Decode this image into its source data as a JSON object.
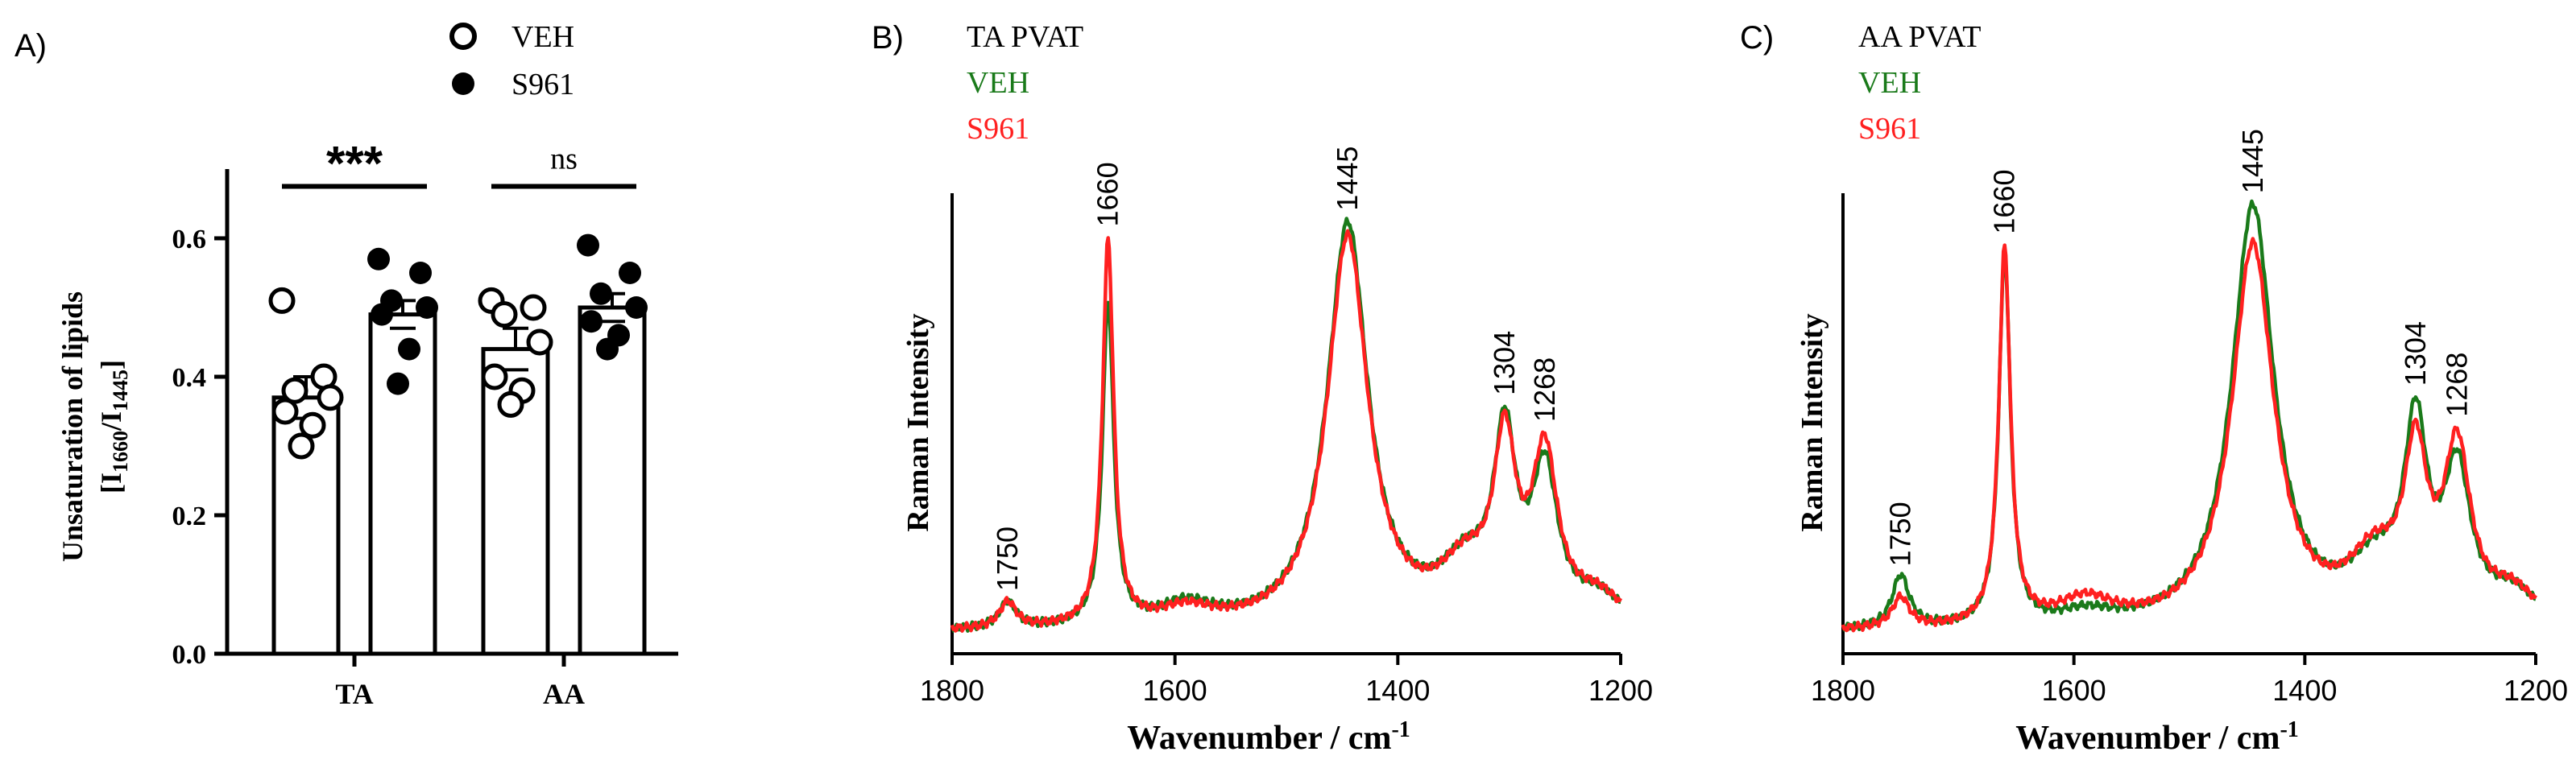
{
  "panels": {
    "a": {
      "label": "A)",
      "legend": [
        {
          "name": "VEH",
          "marker": "open-circle"
        },
        {
          "name": "S961",
          "marker": "filled-circle"
        }
      ],
      "ylabel": "Unsaturation of lipids",
      "ylabel2_prefix": "[I",
      "ylabel2_sub1": "1660",
      "ylabel2_mid": "/I",
      "ylabel2_sub2": "1445",
      "ylabel2_suffix": "]",
      "significance": [
        {
          "group": "TA",
          "text": "***"
        },
        {
          "group": "AA",
          "text": "ns"
        }
      ]
    },
    "b": {
      "label": "B)",
      "title": "TA PVAT",
      "legend": [
        {
          "name": "VEH",
          "color": "#1a7a1a"
        },
        {
          "name": "S961",
          "color": "#ff2020"
        }
      ]
    },
    "c": {
      "label": "C)",
      "title": "AA PVAT",
      "legend": [
        {
          "name": "VEH",
          "color": "#1a7a1a"
        },
        {
          "name": "S961",
          "color": "#ff2020"
        }
      ]
    }
  },
  "chart_data": [
    {
      "id": "a",
      "type": "bar",
      "title": "",
      "xlabel": "",
      "ylabel": "Unsaturation of lipids [I1660/I1445]",
      "categories": [
        "TA",
        "AA"
      ],
      "ylim": [
        0.0,
        0.7
      ],
      "yticks": [
        0.0,
        0.2,
        0.4,
        0.6
      ],
      "ytick_labels": [
        "0.0",
        "0.2",
        "0.4",
        "0.6"
      ],
      "series": [
        {
          "name": "VEH",
          "means": [
            0.37,
            0.44
          ],
          "sem": [
            0.03,
            0.03
          ],
          "points": [
            [
              0.51,
              0.4,
              0.38,
              0.37,
              0.35,
              0.33,
              0.3
            ],
            [
              0.51,
              0.5,
              0.49,
              0.45,
              0.4,
              0.38,
              0.36
            ]
          ]
        },
        {
          "name": "S961",
          "means": [
            0.49,
            0.5
          ],
          "sem": [
            0.02,
            0.02
          ],
          "points": [
            [
              0.57,
              0.55,
              0.51,
              0.5,
              0.49,
              0.44,
              0.39
            ],
            [
              0.59,
              0.55,
              0.52,
              0.5,
              0.48,
              0.46,
              0.44
            ]
          ]
        }
      ]
    },
    {
      "id": "b",
      "type": "line",
      "title": "TA PVAT",
      "xlabel": "Wavenumber / cm-1",
      "ylabel": "Raman Intensity",
      "xlim": [
        1800,
        1200
      ],
      "ylim": [
        0,
        1.05
      ],
      "xticks": [
        1800,
        1600,
        1400,
        1200
      ],
      "baseline": 0.05,
      "peak_labels": [
        "1750",
        "1660",
        "1445",
        "1304",
        "1268"
      ],
      "peaks": [
        {
          "center": 1750,
          "width": 9,
          "veh": 0.06,
          "s961": 0.06
        },
        {
          "center": 1660,
          "width": 6,
          "veh": 0.74,
          "s961": 0.88
        },
        {
          "center": 1590,
          "width": 30,
          "veh": 0.05,
          "s961": 0.04
        },
        {
          "center": 1445,
          "width": 22,
          "veh": 0.92,
          "s961": 0.89
        },
        {
          "center": 1304,
          "width": 12,
          "veh": 0.4,
          "s961": 0.38
        },
        {
          "center": 1268,
          "width": 14,
          "veh": 0.33,
          "s961": 0.37
        },
        {
          "center": 1340,
          "width": 28,
          "veh": 0.12,
          "s961": 0.12
        },
        {
          "center": 1220,
          "width": 25,
          "veh": 0.06,
          "s961": 0.06
        }
      ],
      "series": [
        {
          "name": "VEH",
          "color": "#1a7a1a"
        },
        {
          "name": "S961",
          "color": "#ff2020"
        }
      ]
    },
    {
      "id": "c",
      "type": "line",
      "title": "AA PVAT",
      "xlabel": "Wavenumber / cm-1",
      "ylabel": "Raman Intensity",
      "xlim": [
        1800,
        1200
      ],
      "ylim": [
        0,
        1.05
      ],
      "xticks": [
        1800,
        1600,
        1400,
        1200
      ],
      "baseline": 0.05,
      "peak_labels": [
        "1750",
        "1660",
        "1445",
        "1304",
        "1268"
      ],
      "peaks": [
        {
          "center": 1750,
          "width": 9,
          "veh": 0.12,
          "s961": 0.07
        },
        {
          "center": 1660,
          "width": 6,
          "veh": 0.85,
          "s961": 0.86
        },
        {
          "center": 1590,
          "width": 30,
          "veh": 0.03,
          "s961": 0.06
        },
        {
          "center": 1445,
          "width": 22,
          "veh": 0.96,
          "s961": 0.87
        },
        {
          "center": 1304,
          "width": 12,
          "veh": 0.42,
          "s961": 0.35
        },
        {
          "center": 1268,
          "width": 14,
          "veh": 0.33,
          "s961": 0.38
        },
        {
          "center": 1340,
          "width": 28,
          "veh": 0.12,
          "s961": 0.14
        },
        {
          "center": 1220,
          "width": 25,
          "veh": 0.07,
          "s961": 0.07
        }
      ],
      "series": [
        {
          "name": "VEH",
          "color": "#1a7a1a"
        },
        {
          "name": "S961",
          "color": "#ff2020"
        }
      ]
    }
  ]
}
